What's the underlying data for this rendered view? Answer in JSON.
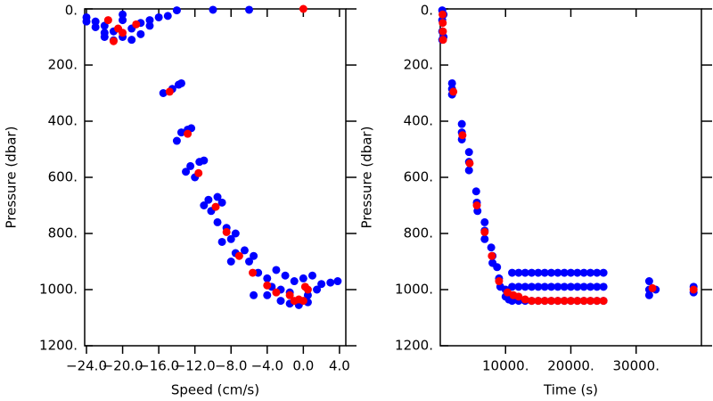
{
  "chart_data": [
    {
      "type": "scatter",
      "xlabel": "Speed (cm/s)",
      "ylabel": "Pressure (dbar)",
      "xlim": [
        -24.2,
        4.7
      ],
      "ylim": [
        1200,
        0
      ],
      "y_inverted": true,
      "xticks": [
        {
          "value": -24,
          "label": "−24.0"
        },
        {
          "value": -20,
          "label": "−20.0"
        },
        {
          "value": -16,
          "label": "−16.0"
        },
        {
          "value": -12,
          "label": "−12.0"
        },
        {
          "value": -8,
          "label": "−8.0"
        },
        {
          "value": -4,
          "label": "−4.0"
        },
        {
          "value": 0,
          "label": "0.0"
        },
        {
          "value": 4,
          "label": "4.0"
        }
      ],
      "yticks": [
        {
          "value": 0,
          "label": "0."
        },
        {
          "value": 200,
          "label": "200."
        },
        {
          "value": 400,
          "label": "400."
        },
        {
          "value": 600,
          "label": "600."
        },
        {
          "value": 800,
          "label": "800."
        },
        {
          "value": 1000,
          "label": "1000."
        },
        {
          "value": 1200,
          "label": "1200."
        }
      ],
      "series": [
        {
          "color": "#0000ff",
          "x": [
            -24,
            -23,
            -22,
            -21,
            -20,
            -21,
            -22,
            -19,
            -18,
            -17,
            -16,
            -15,
            -20,
            -23,
            -19,
            -18,
            -20,
            -24,
            -22,
            -17,
            -14,
            -10,
            -6,
            -15.5,
            -14.5,
            -13.8,
            -13.5,
            -14,
            -13.5,
            -12.8,
            -12.4,
            -13,
            -12.5,
            -11.5,
            -11,
            -12,
            -11,
            -10.5,
            -9.5,
            -9,
            -10.2,
            -9.5,
            -8.5,
            -7.5,
            -9,
            -8,
            -7.5,
            -6.5,
            -5.5,
            -8,
            -6,
            -5,
            -4,
            -3,
            -2,
            -1,
            0,
            1,
            2,
            3,
            3.8,
            -3.5,
            -2.5,
            -1.5,
            0.5,
            1.5,
            -5.5,
            -2.5,
            -1.5,
            -0.5,
            0.5,
            -4
          ],
          "values": [
            30,
            45,
            60,
            80,
            100,
            112,
            100,
            70,
            50,
            40,
            30,
            25,
            40,
            65,
            110,
            90,
            20,
            45,
            85,
            60,
            5,
            3,
            3,
            300,
            285,
            270,
            265,
            470,
            440,
            430,
            425,
            580,
            560,
            545,
            540,
            600,
            700,
            680,
            670,
            690,
            720,
            760,
            780,
            800,
            830,
            820,
            870,
            860,
            880,
            900,
            900,
            940,
            960,
            930,
            950,
            970,
            960,
            950,
            980,
            975,
            970,
            990,
            1000,
            1010,
            1020,
            1000,
            1020,
            1040,
            1050,
            1055,
            1045,
            1020
          ]
        },
        {
          "color": "#ff0000",
          "x": [
            -21.6,
            -20.5,
            -20,
            -21,
            -18.5,
            0,
            -14.8,
            -12.8,
            -11.6,
            -9.7,
            -8.5,
            -7.1,
            -5.6,
            -4,
            -3,
            -1.5,
            -0.5,
            0,
            0.5,
            -1,
            0.2
          ],
          "values": [
            40,
            70,
            85,
            115,
            55,
            0,
            295,
            445,
            585,
            705,
            795,
            880,
            940,
            985,
            1010,
            1020,
            1035,
            1040,
            1000,
            1040,
            990
          ]
        }
      ]
    },
    {
      "type": "scatter",
      "xlabel": "Time (s)",
      "ylabel": "Pressure (dbar)",
      "xlim": [
        0,
        40000
      ],
      "ylim": [
        1200,
        0
      ],
      "y_inverted": true,
      "xticks": [
        {
          "value": 10000,
          "label": "10000."
        },
        {
          "value": 20000,
          "label": "20000."
        },
        {
          "value": 30000,
          "label": "30000."
        }
      ],
      "yticks": [
        {
          "value": 0,
          "label": "0."
        },
        {
          "value": 200,
          "label": "200."
        },
        {
          "value": 400,
          "label": "400."
        },
        {
          "value": 600,
          "label": "600."
        },
        {
          "value": 800,
          "label": "800."
        },
        {
          "value": 1000,
          "label": "1000."
        },
        {
          "value": 1200,
          "label": "1200."
        }
      ],
      "series": [
        {
          "color": "#0000ff",
          "x": [
            300,
            300,
            300,
            300,
            500,
            500,
            1800,
            1800,
            1800,
            3300,
            3300,
            3300,
            4400,
            4400,
            4400,
            5500,
            5600,
            5700,
            6800,
            6800,
            6800,
            7800,
            8000,
            8000,
            8700,
            9000,
            9200,
            10000,
            10000,
            10500,
            11000,
            11000,
            11000,
            12000,
            12000,
            12000,
            13000,
            13000,
            13000,
            14000,
            14000,
            14000,
            15000,
            15000,
            15000,
            16000,
            16000,
            16000,
            17000,
            17000,
            17000,
            18000,
            18000,
            18000,
            19000,
            19000,
            19000,
            20000,
            20000,
            20000,
            21000,
            21000,
            21000,
            22000,
            22000,
            22000,
            23000,
            23000,
            23000,
            24000,
            24000,
            24000,
            25000,
            25000,
            25000,
            32000,
            32000,
            32000,
            33000,
            38800,
            38800
          ],
          "values": [
            5,
            40,
            80,
            110,
            20,
            100,
            265,
            285,
            305,
            410,
            440,
            465,
            510,
            545,
            575,
            650,
            690,
            720,
            760,
            790,
            820,
            850,
            880,
            905,
            920,
            960,
            990,
            1000,
            1025,
            1035,
            940,
            990,
            1040,
            940,
            990,
            1040,
            940,
            990,
            1040,
            940,
            990,
            1040,
            940,
            990,
            1040,
            940,
            990,
            1040,
            940,
            990,
            1040,
            940,
            990,
            1040,
            940,
            990,
            1040,
            940,
            990,
            1040,
            940,
            990,
            1040,
            940,
            990,
            1040,
            940,
            990,
            1040,
            940,
            990,
            1040,
            940,
            990,
            1040,
            970,
            1000,
            1020,
            1000,
            990,
            1010
          ]
        },
        {
          "color": "#ff0000",
          "x": [
            350,
            380,
            400,
            420,
            2000,
            3400,
            4500,
            5600,
            6800,
            7900,
            9000,
            10300,
            11200,
            12000,
            13000,
            14000,
            15000,
            16000,
            17000,
            18000,
            19000,
            20000,
            21000,
            22000,
            23000,
            24000,
            25000,
            32500,
            38800
          ],
          "values": [
            20,
            50,
            80,
            110,
            295,
            450,
            550,
            700,
            795,
            880,
            970,
            1010,
            1020,
            1025,
            1035,
            1040,
            1040,
            1040,
            1040,
            1040,
            1040,
            1040,
            1040,
            1040,
            1040,
            1040,
            1040,
            995,
            1000
          ]
        }
      ]
    }
  ]
}
